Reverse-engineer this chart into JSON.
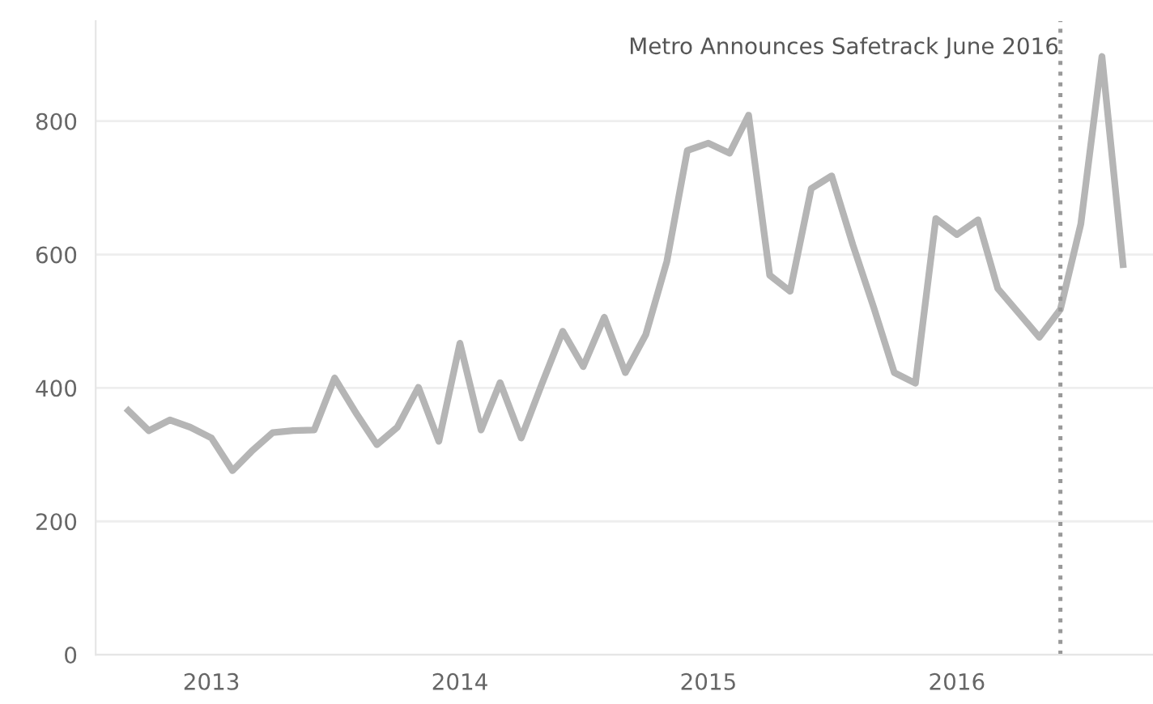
{
  "chart_data": {
    "type": "line",
    "x": [
      "2012-09",
      "2012-10",
      "2012-11",
      "2012-12",
      "2013-01",
      "2013-02",
      "2013-03",
      "2013-04",
      "2013-05",
      "2013-06",
      "2013-07",
      "2013-08",
      "2013-09",
      "2013-10",
      "2013-11",
      "2013-12",
      "2014-01",
      "2014-02",
      "2014-03",
      "2014-04",
      "2014-05",
      "2014-06",
      "2014-07",
      "2014-08",
      "2014-09",
      "2014-10",
      "2014-11",
      "2014-12",
      "2015-01",
      "2015-02",
      "2015-03",
      "2015-04",
      "2015-05",
      "2015-06",
      "2015-07",
      "2015-08",
      "2015-09",
      "2015-10",
      "2015-11",
      "2015-12",
      "2016-01",
      "2016-02",
      "2016-03",
      "2016-04",
      "2016-05",
      "2016-06",
      "2016-07",
      "2016-08",
      "2016-09"
    ],
    "series": [
      {
        "color": "#b5b5b5",
        "values": [
          366,
          336,
          352,
          341,
          325,
          276,
          305,
          333,
          336,
          337,
          415,
          363,
          315,
          341,
          401,
          320,
          467,
          337,
          408,
          325,
          405,
          485,
          432,
          506,
          423,
          480,
          590,
          756,
          767,
          752,
          809,
          569,
          545,
          699,
          718,
          615,
          520,
          423,
          407,
          654,
          630,
          652,
          549,
          512,
          476,
          518,
          646,
          897,
          585
        ]
      }
    ],
    "xlim": [
      "2012-07-15",
      "2016-10-15"
    ],
    "xticks": [
      "2013",
      "2014",
      "2015",
      "2016"
    ],
    "ylim": [
      0,
      950
    ],
    "yticks": [
      0,
      200,
      400,
      600,
      800
    ],
    "grid": "y",
    "marker": "none",
    "line_style": "solid",
    "ref_lines": [
      {
        "axis": "x",
        "value": "2016-06",
        "label": "Metro Announces Safetrack June 2016",
        "line_style": "dotted",
        "color": "#999999"
      }
    ]
  }
}
